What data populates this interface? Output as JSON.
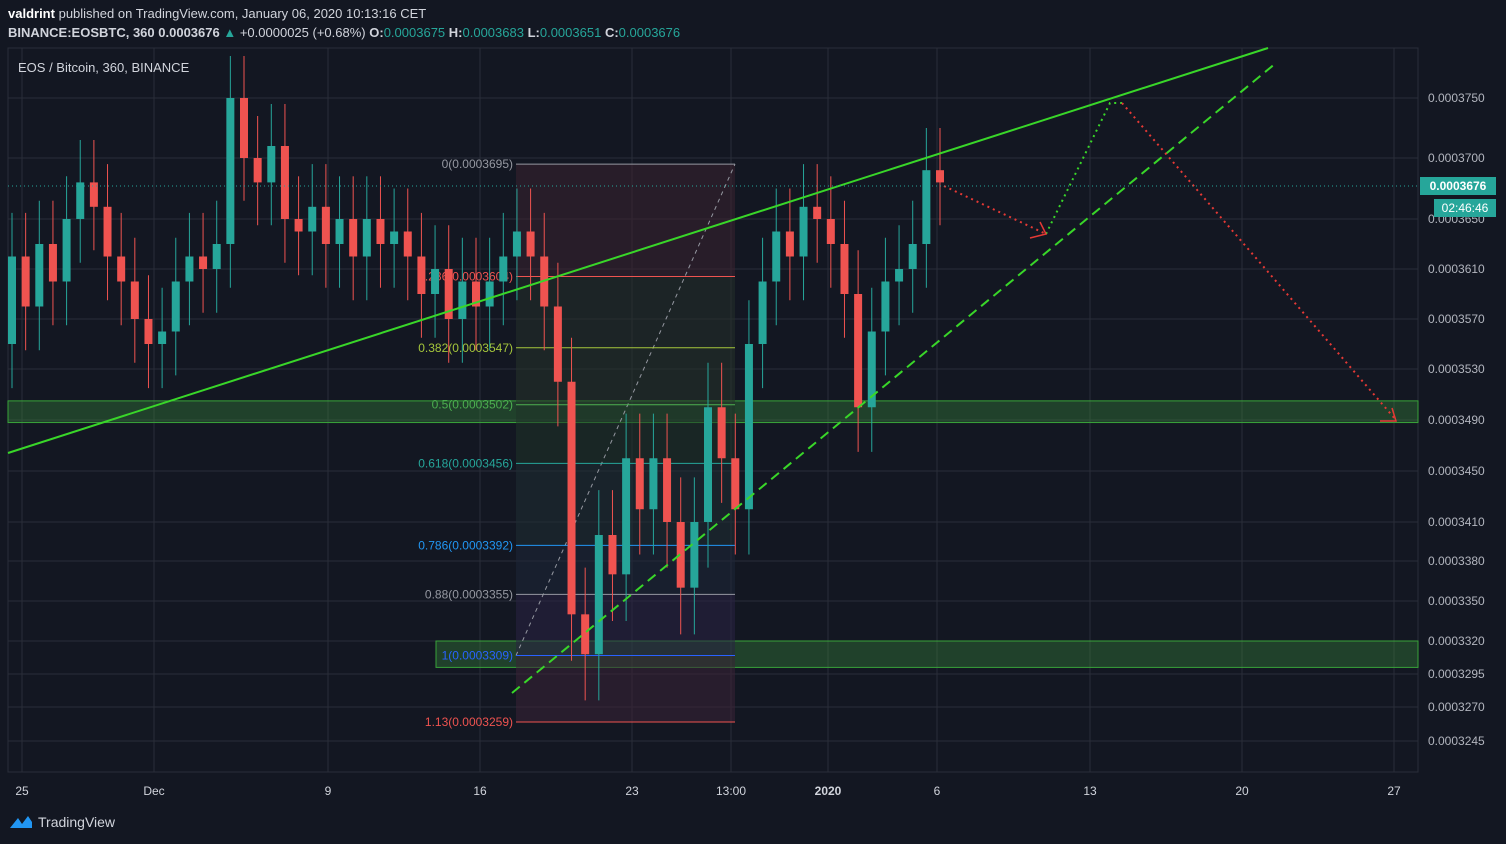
{
  "header": {
    "author": "valdrint",
    "published_text": "published on TradingView.com, January 06, 2020 10:13:16 CET",
    "symbol": "BINANCE:EOSBTC, 360",
    "last": "0.0003676",
    "arrow": "▲",
    "change": "+0.0000025 (+0.68%)",
    "o_label": "O:",
    "o": "0.0003675",
    "h_label": "H:",
    "h": "0.0003683",
    "l_label": "L:",
    "l": "0.0003651",
    "c_label": "C:",
    "c": "0.0003676"
  },
  "brand": {
    "name": "TradingView"
  },
  "colors": {
    "bg": "#131722",
    "up": "#26a69a",
    "down": "#ef5350",
    "trend": "#39d629",
    "grid": "#2a2e39",
    "zone": "#1f5d1f",
    "price_tag": "#26a69a"
  },
  "chart_data": {
    "type": "candlestick",
    "title": "EOS / Bitcoin, 360, BINANCE",
    "y_ticks": [
      "0.0003750",
      "0.0003700",
      "0.0003650",
      "0.0003610",
      "0.0003570",
      "0.0003530",
      "0.0003490",
      "0.0003450",
      "0.0003410",
      "0.0003380",
      "0.0003350",
      "0.0003320",
      "0.0003295",
      "0.0003270",
      "0.0003245"
    ],
    "x_ticks": [
      "25",
      "Dec",
      "9",
      "16",
      "23",
      "13:00",
      "2020",
      "6",
      "13",
      "20",
      "27"
    ],
    "current_price": "0.0003676",
    "countdown": "02:46:46",
    "fib_levels": [
      {
        "label": "0(0.0003695)",
        "value": 0.0003695,
        "color": "#9598a1"
      },
      {
        "label": "0.236(0.0003604)",
        "value": 0.0003604,
        "color": "#ef5350"
      },
      {
        "label": "0.382(0.0003547)",
        "value": 0.0003547,
        "color": "#a5c63b"
      },
      {
        "label": "0.5(0.0003502)",
        "value": 0.0003502,
        "color": "#4caf50"
      },
      {
        "label": "0.618(0.0003456)",
        "value": 0.0003456,
        "color": "#26a69a"
      },
      {
        "label": "0.786(0.0003392)",
        "value": 0.0003392,
        "color": "#2196f3"
      },
      {
        "label": "0.88(0.0003355)",
        "value": 0.0003355,
        "color": "#9598a1"
      },
      {
        "label": "1(0.0003309)",
        "value": 0.0003309,
        "color": "#2962ff"
      },
      {
        "label": "1.13(0.0003259)",
        "value": 0.0003259,
        "color": "#ef5350"
      }
    ],
    "support_zones": [
      {
        "from": 0.0003488,
        "to": 0.0003505
      },
      {
        "from": 0.00033,
        "to": 0.000332
      }
    ],
    "candles_approx": [
      [
        0.000355,
        0.000362
      ],
      [
        0.000362,
        0.000358
      ],
      [
        0.000358,
        0.000363
      ],
      [
        0.000363,
        0.00036
      ],
      [
        0.00036,
        0.000365
      ],
      [
        0.000365,
        0.000368
      ],
      [
        0.000368,
        0.000366
      ],
      [
        0.000366,
        0.000362
      ],
      [
        0.000362,
        0.00036
      ],
      [
        0.00036,
        0.000357
      ],
      [
        0.000357,
        0.000355
      ],
      [
        0.000355,
        0.000356
      ],
      [
        0.000356,
        0.00036
      ],
      [
        0.00036,
        0.000362
      ],
      [
        0.000362,
        0.000361
      ],
      [
        0.000361,
        0.000363
      ],
      [
        0.000363,
        0.000375
      ],
      [
        0.000375,
        0.00037
      ],
      [
        0.00037,
        0.000368
      ],
      [
        0.000368,
        0.000371
      ],
      [
        0.000371,
        0.000365
      ],
      [
        0.000365,
        0.000364
      ],
      [
        0.000364,
        0.000366
      ],
      [
        0.000366,
        0.000363
      ],
      [
        0.000363,
        0.000365
      ],
      [
        0.000365,
        0.000362
      ],
      [
        0.000362,
        0.000365
      ],
      [
        0.000365,
        0.000363
      ],
      [
        0.000363,
        0.000364
      ],
      [
        0.000364,
        0.000362
      ],
      [
        0.000362,
        0.000359
      ],
      [
        0.000359,
        0.000361
      ],
      [
        0.000361,
        0.000357
      ],
      [
        0.000357,
        0.00036
      ],
      [
        0.00036,
        0.000358
      ],
      [
        0.000358,
        0.00036
      ],
      [
        0.00036,
        0.000362
      ],
      [
        0.000362,
        0.000364
      ],
      [
        0.000364,
        0.000362
      ],
      [
        0.000362,
        0.000358
      ],
      [
        0.000358,
        0.000352
      ],
      [
        0.000352,
        0.000334
      ],
      [
        0.000334,
        0.000331
      ],
      [
        0.000331,
        0.00034
      ],
      [
        0.00034,
        0.000337
      ],
      [
        0.000337,
        0.000346
      ],
      [
        0.000346,
        0.000342
      ],
      [
        0.000342,
        0.000346
      ],
      [
        0.000346,
        0.000341
      ],
      [
        0.000341,
        0.000336
      ],
      [
        0.000336,
        0.000341
      ],
      [
        0.000341,
        0.00035
      ],
      [
        0.00035,
        0.000346
      ],
      [
        0.000346,
        0.000342
      ],
      [
        0.000342,
        0.000355
      ],
      [
        0.000355,
        0.00036
      ],
      [
        0.00036,
        0.000364
      ],
      [
        0.000364,
        0.000362
      ],
      [
        0.000362,
        0.000366
      ],
      [
        0.000366,
        0.000365
      ],
      [
        0.000365,
        0.000363
      ],
      [
        0.000363,
        0.000359
      ],
      [
        0.000359,
        0.00035
      ],
      [
        0.00035,
        0.000356
      ],
      [
        0.000356,
        0.00036
      ],
      [
        0.00036,
        0.000361
      ],
      [
        0.000361,
        0.000363
      ],
      [
        0.000363,
        0.000369
      ],
      [
        0.000369,
        0.000368
      ]
    ]
  }
}
